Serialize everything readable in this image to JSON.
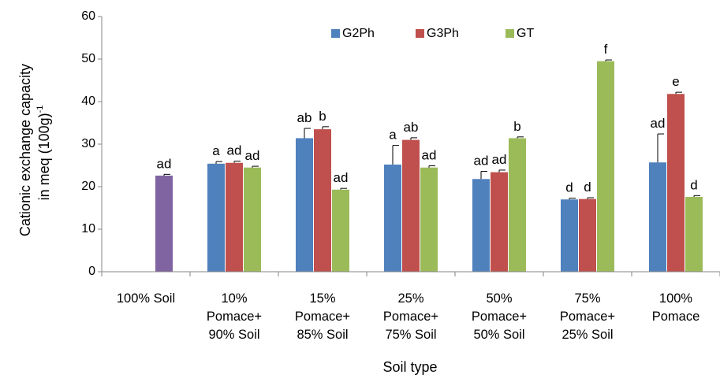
{
  "chart_data": {
    "type": "bar",
    "ylabel_line1": "Cationic exchange capacity",
    "ylabel_line2": "in meq (100g)",
    "ylabel_sup": "-1",
    "xlabel": "Soil type",
    "ylim": [
      0,
      60
    ],
    "yticks": [
      "0",
      "10",
      "20",
      "30",
      "40",
      "50",
      "60"
    ],
    "legend_position": "top",
    "categories": [
      [
        "100% Soil"
      ],
      [
        "10%",
        "Pomace+",
        "90% Soil"
      ],
      [
        "15%",
        "Pomace+",
        "85% Soil"
      ],
      [
        "25%",
        "Pomace+",
        "75% Soil"
      ],
      [
        "50%",
        "Pomace+",
        "50% Soil"
      ],
      [
        "75%",
        "Pomace+",
        "25% Soil"
      ],
      [
        "100%",
        "Pomace"
      ]
    ],
    "series": [
      {
        "name": "G2Ph",
        "color": "#4f81bd",
        "values": [
          0,
          25.4,
          31.4,
          25.2,
          21.8,
          17.0,
          25.7
        ],
        "errors": [
          0,
          0.5,
          2.3,
          4.5,
          1.8,
          0.3,
          6.7
        ],
        "labels": [
          "",
          "a",
          "ab",
          "a",
          "ad",
          "d",
          "ad"
        ]
      },
      {
        "name": "G3Ph",
        "color": "#c0504d",
        "values": [
          0,
          25.6,
          33.5,
          31.0,
          23.4,
          17.1,
          41.8
        ],
        "errors": [
          0,
          0.4,
          0.6,
          0.5,
          0.5,
          0.3,
          0.4
        ],
        "labels": [
          "",
          "ad",
          "b",
          "ab",
          "ad",
          "d",
          "e"
        ]
      },
      {
        "name": "GT",
        "color": "#9bbb59",
        "values": [
          0,
          24.5,
          19.3,
          24.5,
          31.4,
          49.5,
          17.6
        ],
        "errors": [
          0,
          0.3,
          0.3,
          0.4,
          0.3,
          0.3,
          0.3
        ],
        "labels": [
          "",
          "ad",
          "ad",
          "ad",
          "b",
          "f",
          "d"
        ]
      }
    ],
    "soil_bar": {
      "color": "#8064a2",
      "value": 22.6,
      "error": 0.3,
      "label": "ad"
    }
  }
}
